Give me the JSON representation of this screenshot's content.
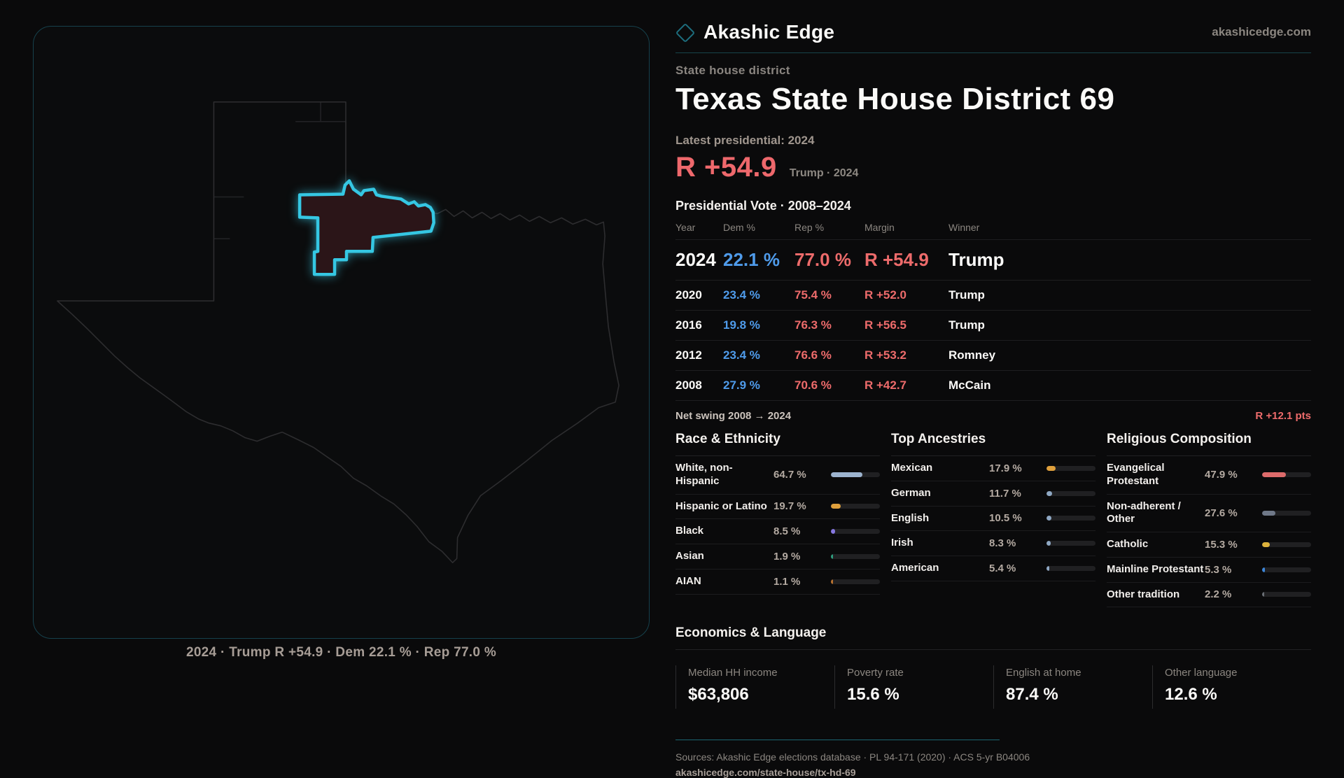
{
  "brand": {
    "name": "Akashic Edge",
    "domain": "akashicedge.com"
  },
  "page": {
    "kicker": "State house district",
    "title": "Texas State House District 69"
  },
  "latest": {
    "label": "Latest presidential: 2024",
    "margin": "R +54.9",
    "sub": "Trump · 2024"
  },
  "vote_table": {
    "title": "Presidential Vote · 2008–2024",
    "headers": [
      "Year",
      "Dem %",
      "Rep %",
      "Margin",
      "Winner"
    ],
    "rows": [
      {
        "year": "2024",
        "dem": "22.1 %",
        "rep": "77.0 %",
        "margin": "R +54.9",
        "winner": "Trump",
        "big": true
      },
      {
        "year": "2020",
        "dem": "23.4 %",
        "rep": "75.4 %",
        "margin": "R +52.0",
        "winner": "Trump",
        "big": false
      },
      {
        "year": "2016",
        "dem": "19.8 %",
        "rep": "76.3 %",
        "margin": "R +56.5",
        "winner": "Trump",
        "big": false
      },
      {
        "year": "2012",
        "dem": "23.4 %",
        "rep": "76.6 %",
        "margin": "R +53.2",
        "winner": "Romney",
        "big": false
      },
      {
        "year": "2008",
        "dem": "27.9 %",
        "rep": "70.6 %",
        "margin": "R +42.7",
        "winner": "McCain",
        "big": false
      }
    ]
  },
  "net_swing": {
    "label": "Net swing 2008 → 2024",
    "value": "R +12.1 pts"
  },
  "demographics": [
    {
      "title": "Race & Ethnicity",
      "rows": [
        {
          "label": "White, non-Hispanic",
          "value": "64.7 %",
          "pct": 64.7,
          "color": "#9db4cf"
        },
        {
          "label": "Hispanic or Latino",
          "value": "19.7 %",
          "pct": 19.7,
          "color": "#dfa03c"
        },
        {
          "label": "Black",
          "value": "8.5 %",
          "pct": 8.5,
          "color": "#8677e0"
        },
        {
          "label": "Asian",
          "value": "1.9 %",
          "pct": 1.9,
          "color": "#2e9e7e"
        },
        {
          "label": "AIAN",
          "value": "1.1 %",
          "pct": 1.1,
          "color": "#b9722f"
        }
      ]
    },
    {
      "title": "Top Ancestries",
      "rows": [
        {
          "label": "Mexican",
          "value": "17.9 %",
          "pct": 17.9,
          "color": "#dfa03c"
        },
        {
          "label": "German",
          "value": "11.7 %",
          "pct": 11.7,
          "color": "#8fa8c4"
        },
        {
          "label": "English",
          "value": "10.5 %",
          "pct": 10.5,
          "color": "#8fa8c4"
        },
        {
          "label": "Irish",
          "value": "8.3 %",
          "pct": 8.3,
          "color": "#8fa8c4"
        },
        {
          "label": "American",
          "value": "5.4 %",
          "pct": 5.4,
          "color": "#8fa8c4"
        }
      ]
    },
    {
      "title": "Religious Composition",
      "rows": [
        {
          "label": "Evangelical Protestant",
          "value": "47.9 %",
          "pct": 47.9,
          "color": "#dd6b6b"
        },
        {
          "label": "Non-adherent / Other",
          "value": "27.6 %",
          "pct": 27.6,
          "color": "#6f7888"
        },
        {
          "label": "Catholic",
          "value": "15.3 %",
          "pct": 15.3,
          "color": "#ddb23c"
        },
        {
          "label": "Mainline Protestant",
          "value": "5.3 %",
          "pct": 5.3,
          "color": "#3d86d8"
        },
        {
          "label": "Other tradition",
          "value": "2.2 %",
          "pct": 2.2,
          "color": "#6a6f75"
        }
      ]
    }
  ],
  "economics": {
    "title": "Economics & Language",
    "stats": [
      {
        "label": "Median HH income",
        "value": "$63,806"
      },
      {
        "label": "Poverty rate",
        "value": "15.6 %"
      },
      {
        "label": "English at home",
        "value": "87.4 %"
      },
      {
        "label": "Other language",
        "value": "12.6 %"
      }
    ]
  },
  "footer": {
    "sources": "Sources: Akashic Edge elections database · PL 94-171 (2020) · ACS 5-yr B04006",
    "permalink": "akashicedge.com/state-house/tx-hd-69"
  },
  "map": {
    "caption": "2024 · Trump R +54.9 · Dem 22.1 % · Rep 77.0 %",
    "district_outline_color": "#35c7e3",
    "district_fill_color": "#2b1518",
    "state_outline_color": "#2d2d2f"
  }
}
